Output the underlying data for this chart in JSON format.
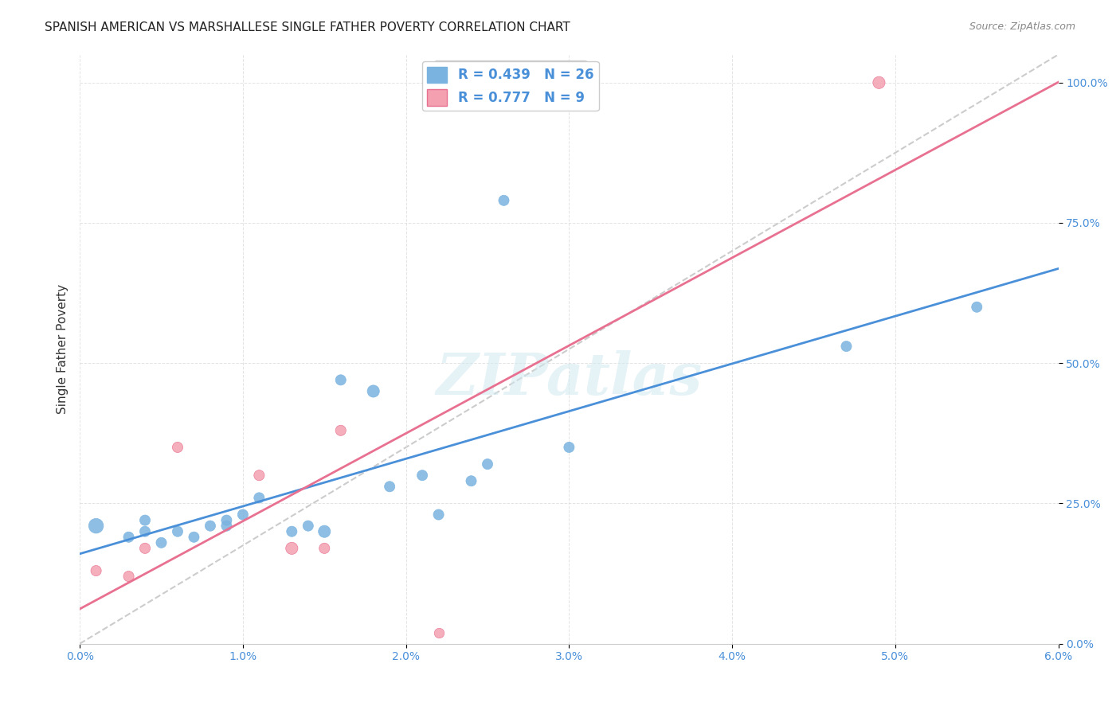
{
  "title": "SPANISH AMERICAN VS MARSHALLESE SINGLE FATHER POVERTY CORRELATION CHART",
  "source": "Source: ZipAtlas.com",
  "xlabel": "",
  "ylabel": "Single Father Poverty",
  "xlim": [
    0.0,
    0.06
  ],
  "ylim": [
    0.0,
    1.05
  ],
  "xticks": [
    0.0,
    0.01,
    0.02,
    0.03,
    0.04,
    0.05,
    0.06
  ],
  "yticks": [
    0.0,
    0.25,
    0.5,
    0.75,
    1.0
  ],
  "background_color": "#ffffff",
  "watermark": "ZIPatlas",
  "spanish_color": "#7ab3e0",
  "marshallese_color": "#f4a0b0",
  "spanish_line_color": "#4a90d9",
  "marshallese_line_color": "#e87090",
  "r_spanish": 0.439,
  "n_spanish": 26,
  "r_marshallese": 0.777,
  "n_marshallese": 9,
  "spanish_x": [
    0.001,
    0.003,
    0.004,
    0.004,
    0.005,
    0.006,
    0.007,
    0.008,
    0.009,
    0.009,
    0.01,
    0.011,
    0.013,
    0.014,
    0.015,
    0.016,
    0.018,
    0.019,
    0.021,
    0.022,
    0.024,
    0.025,
    0.026,
    0.03,
    0.047,
    0.055
  ],
  "spanish_y": [
    0.21,
    0.19,
    0.2,
    0.22,
    0.18,
    0.2,
    0.19,
    0.21,
    0.22,
    0.21,
    0.23,
    0.26,
    0.2,
    0.21,
    0.2,
    0.47,
    0.45,
    0.28,
    0.3,
    0.23,
    0.29,
    0.32,
    0.79,
    0.35,
    0.53,
    0.6
  ],
  "spanish_sizes": [
    120,
    60,
    60,
    60,
    60,
    60,
    60,
    60,
    60,
    60,
    60,
    60,
    60,
    60,
    80,
    60,
    80,
    60,
    60,
    60,
    60,
    60,
    60,
    60,
    60,
    60
  ],
  "marshallese_x": [
    0.001,
    0.003,
    0.004,
    0.006,
    0.011,
    0.013,
    0.015,
    0.016,
    0.049
  ],
  "marshallese_y": [
    0.13,
    0.12,
    0.17,
    0.35,
    0.3,
    0.17,
    0.17,
    0.38,
    1.0
  ],
  "marshallese_sizes": [
    60,
    60,
    60,
    60,
    60,
    80,
    60,
    60,
    80
  ],
  "marshallese_extra_x": [
    0.022
  ],
  "marshallese_extra_y": [
    0.02
  ]
}
